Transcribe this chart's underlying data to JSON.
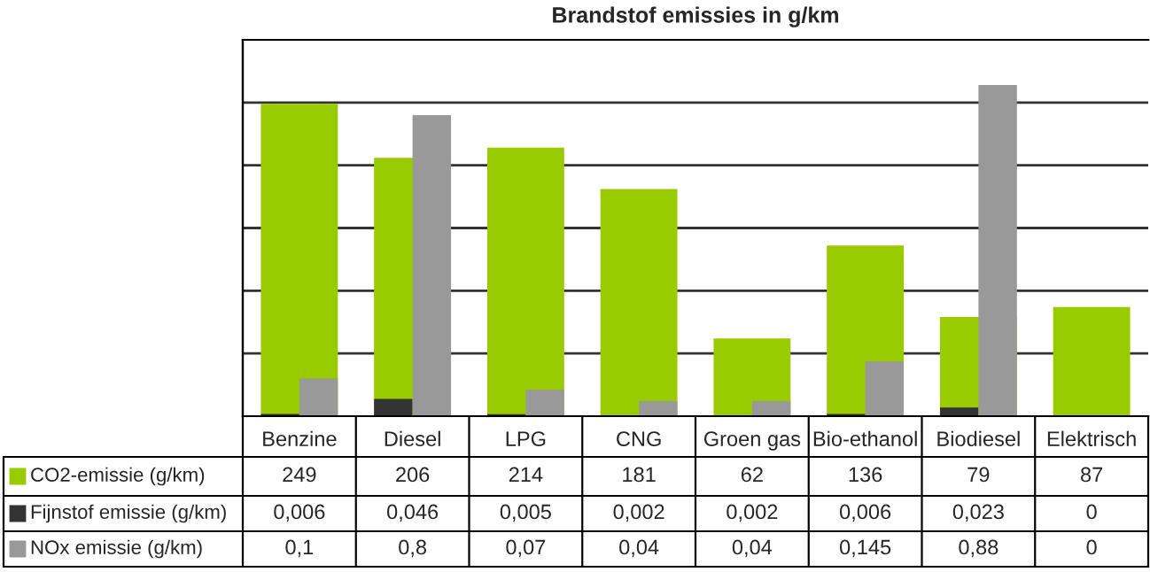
{
  "chart_data": {
    "type": "bar",
    "title": "Brandstof emissies in g/km",
    "categories": [
      "Benzine",
      "Diesel",
      "LPG",
      "CNG",
      "Groen gas",
      "Bio-ethanol",
      "Biodiesel",
      "Elektrisch"
    ],
    "series": [
      {
        "name": "CO2-emissie (g/km)",
        "color": "#99cc00",
        "values": [
          249,
          206,
          214,
          181,
          62,
          136,
          79,
          87
        ],
        "value_labels": [
          "249",
          "206",
          "214",
          "181",
          "62",
          "136",
          "79",
          "87"
        ]
      },
      {
        "name": "Fijnstof emissie (g/km)",
        "color": "#333333",
        "axis": "y2",
        "values": [
          0.006,
          0.046,
          0.005,
          0.002,
          0.002,
          0.006,
          0.023,
          0
        ],
        "value_labels": [
          "0,006",
          "0,046",
          "0,005",
          "0,002",
          "0,002",
          "0,006",
          "0,023",
          "0"
        ]
      },
      {
        "name": "NOx emissie (g/km)",
        "color": "#999999",
        "axis": "y2",
        "values": [
          0.1,
          0.8,
          0.07,
          0.04,
          0.04,
          0.145,
          0.88,
          0
        ],
        "value_labels": [
          "0,1",
          "0,8",
          "0,07",
          "0,04",
          "0,04",
          "0,145",
          "0,88",
          "0"
        ]
      }
    ],
    "ylim": [
      0,
      300
    ],
    "y2lim": [
      0,
      1
    ],
    "grid": "y",
    "tick_labels": "x",
    "legend": "left"
  }
}
